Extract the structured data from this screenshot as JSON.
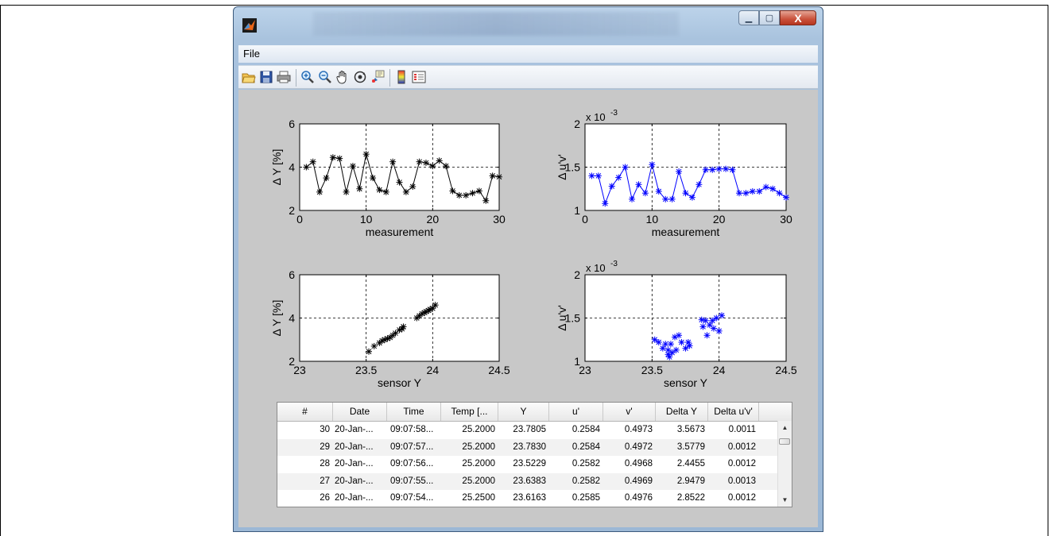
{
  "menubar": {
    "file_label": "File"
  },
  "toolbar": {
    "icons": [
      "open-file-icon",
      "save-icon",
      "print-icon",
      "zoom-in-icon",
      "zoom-out-icon",
      "pan-icon",
      "rotate-3d-icon",
      "data-cursor-icon",
      "insert-colorbar-icon",
      "insert-legend-icon"
    ]
  },
  "plots": {
    "p1": {
      "ylabel": "Δ Y [%]",
      "xlabel": "measurement",
      "yticks": [
        "2",
        "4",
        "6"
      ],
      "xticks": [
        "0",
        "10",
        "20",
        "30"
      ],
      "exponent": ""
    },
    "p2": {
      "ylabel": "Δ u'v'",
      "xlabel": "measurement",
      "yticks": [
        "1",
        "1.5",
        "2"
      ],
      "xticks": [
        "0",
        "10",
        "20",
        "30"
      ],
      "exponent": "x 10",
      "exponent_power": "-3"
    },
    "p3": {
      "ylabel": "Δ Y [%]",
      "xlabel": "sensor Y",
      "yticks": [
        "2",
        "4",
        "6"
      ],
      "xticks": [
        "23",
        "23.5",
        "24",
        "24.5"
      ],
      "exponent": ""
    },
    "p4": {
      "ylabel": "Δ u'v'",
      "xlabel": "sensor Y",
      "yticks": [
        "1",
        "1.5",
        "2"
      ],
      "xticks": [
        "23",
        "23.5",
        "24",
        "24.5"
      ],
      "exponent": "x 10",
      "exponent_power": "-3"
    }
  },
  "chart_data": [
    {
      "type": "line",
      "xlabel": "measurement",
      "ylabel": "Δ Y [%]",
      "xlim": [
        0,
        30
      ],
      "ylim": [
        2,
        6
      ],
      "grid": true,
      "color": "#000000",
      "x": [
        1,
        2,
        3,
        4,
        5,
        6,
        7,
        8,
        9,
        10,
        11,
        12,
        13,
        14,
        15,
        16,
        17,
        18,
        19,
        20,
        21,
        22,
        23,
        24,
        25,
        26,
        27,
        28,
        29,
        30
      ],
      "values": [
        4.0,
        4.25,
        2.85,
        3.5,
        4.45,
        4.4,
        2.85,
        4.05,
        3.0,
        4.6,
        3.5,
        2.95,
        2.85,
        4.25,
        3.3,
        2.85,
        3.1,
        4.25,
        4.2,
        4.05,
        4.3,
        4.05,
        2.9,
        2.7,
        2.7,
        2.8,
        2.9,
        2.45,
        3.6,
        3.55
      ]
    },
    {
      "type": "line",
      "xlabel": "measurement",
      "ylabel": "Δ u'v'",
      "xlim": [
        0,
        30
      ],
      "ylim": [
        1,
        2
      ],
      "grid": true,
      "color": "#0000ff",
      "x": [
        1,
        2,
        3,
        4,
        5,
        6,
        7,
        8,
        9,
        10,
        11,
        12,
        13,
        14,
        15,
        16,
        17,
        18,
        19,
        20,
        21,
        22,
        23,
        24,
        25,
        26,
        27,
        28,
        29,
        30
      ],
      "values": [
        1.4,
        1.4,
        1.08,
        1.28,
        1.38,
        1.5,
        1.13,
        1.3,
        1.2,
        1.53,
        1.22,
        1.13,
        1.13,
        1.45,
        1.2,
        1.15,
        1.3,
        1.47,
        1.47,
        1.48,
        1.48,
        1.47,
        1.2,
        1.2,
        1.22,
        1.22,
        1.27,
        1.25,
        1.2,
        1.15
      ]
    },
    {
      "type": "scatter",
      "xlabel": "sensor Y",
      "ylabel": "Δ Y [%]",
      "xlim": [
        23,
        24.5
      ],
      "ylim": [
        2,
        6
      ],
      "grid": true,
      "color": "#000000",
      "x": [
        23.52,
        23.56,
        23.6,
        23.62,
        23.64,
        23.66,
        23.68,
        23.7,
        23.72,
        23.75,
        23.77,
        23.78,
        23.88,
        23.9,
        23.92,
        23.94,
        23.95,
        23.97,
        23.98,
        24.0,
        24.02
      ],
      "values": [
        2.45,
        2.7,
        2.85,
        2.95,
        3.0,
        3.05,
        3.1,
        3.2,
        3.3,
        3.45,
        3.5,
        3.6,
        4.0,
        4.1,
        4.2,
        4.25,
        4.3,
        4.35,
        4.4,
        4.45,
        4.6
      ]
    },
    {
      "type": "scatter",
      "xlabel": "sensor Y",
      "ylabel": "Δ u'v'",
      "xlim": [
        23,
        24.5
      ],
      "ylim": [
        1,
        2
      ],
      "grid": true,
      "color": "#0000ff",
      "x": [
        23.52,
        23.55,
        23.58,
        23.6,
        23.62,
        23.62,
        23.63,
        23.64,
        23.65,
        23.67,
        23.68,
        23.7,
        23.72,
        23.75,
        23.77,
        23.78,
        23.87,
        23.88,
        23.9,
        23.91,
        23.93,
        23.95,
        23.96,
        23.98,
        24.0,
        24.02
      ],
      "values": [
        1.25,
        1.22,
        1.15,
        1.2,
        1.08,
        1.13,
        1.05,
        1.2,
        1.1,
        1.28,
        1.13,
        1.3,
        1.22,
        1.15,
        1.22,
        1.18,
        1.48,
        1.4,
        1.47,
        1.3,
        1.42,
        1.47,
        1.38,
        1.5,
        1.35,
        1.53
      ]
    }
  ],
  "table": {
    "headers": [
      "#",
      "Date",
      "Time",
      "Temp [...",
      "Y",
      "u'",
      "v'",
      "Delta Y",
      "Delta u'v'"
    ],
    "rows": [
      [
        "30",
        "20-Jan-...",
        "09:07:58...",
        "25.2000",
        "23.7805",
        "0.2584",
        "0.4973",
        "3.5673",
        "0.0011"
      ],
      [
        "29",
        "20-Jan-...",
        "09:07:57...",
        "25.2000",
        "23.7830",
        "0.2584",
        "0.4972",
        "3.5779",
        "0.0012"
      ],
      [
        "28",
        "20-Jan-...",
        "09:07:56...",
        "25.2000",
        "23.5229",
        "0.2582",
        "0.4968",
        "2.4455",
        "0.0012"
      ],
      [
        "27",
        "20-Jan-...",
        "09:07:55...",
        "25.2000",
        "23.6383",
        "0.2582",
        "0.4969",
        "2.9479",
        "0.0013"
      ],
      [
        "26",
        "20-Jan-...",
        "09:07:54...",
        "25.2500",
        "23.6163",
        "0.2585",
        "0.4976",
        "2.8522",
        "0.0012"
      ]
    ]
  },
  "scrollbar": {
    "up_arrow": "▲",
    "down_arrow": "▼"
  },
  "window_controls": {
    "minimize": "▁",
    "maximize": "▢",
    "close": "X"
  }
}
